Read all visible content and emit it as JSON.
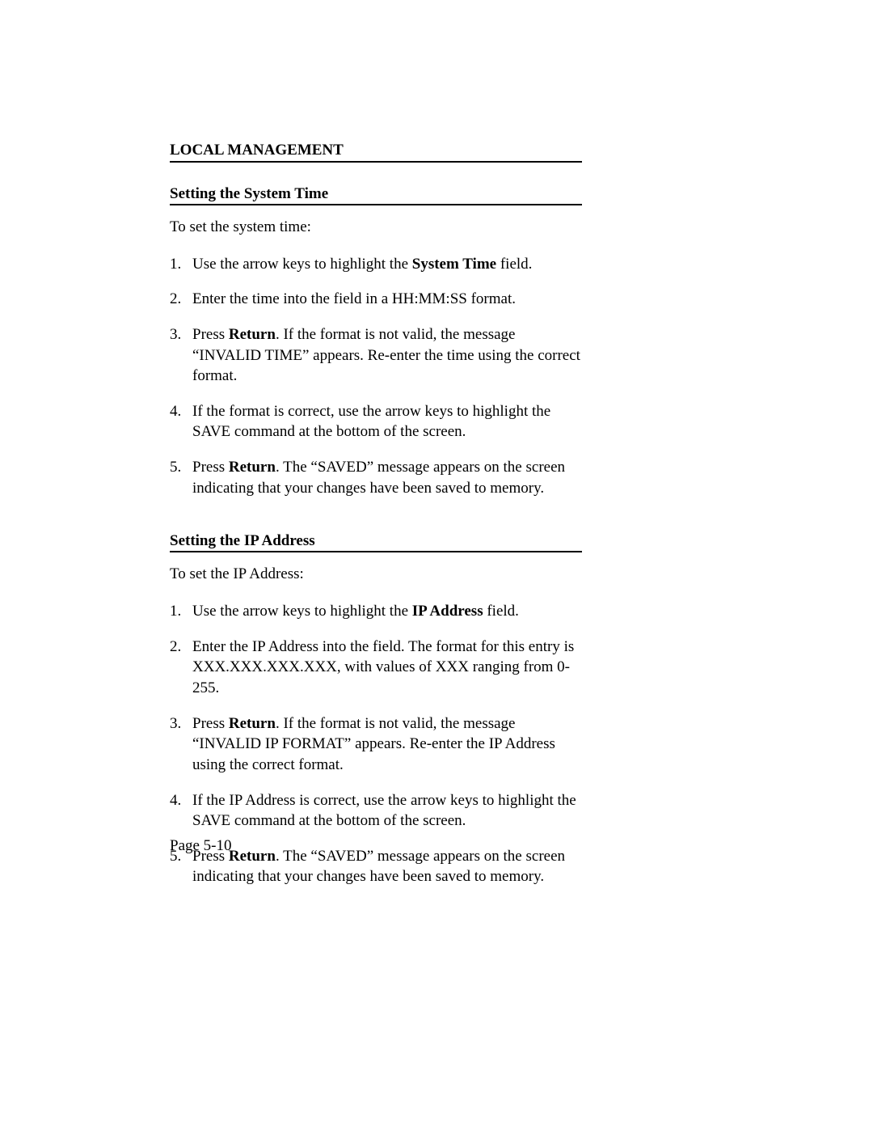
{
  "chapter_title": "LOCAL MANAGEMENT",
  "section1": {
    "title": "Setting the System Time",
    "intro": "To set the system time:",
    "steps": [
      {
        "num": "1.",
        "pre": "Use the arrow keys to highlight the ",
        "bold": "System Time",
        "post": " field."
      },
      {
        "num": "2.",
        "pre": "Enter the time into the field in a HH:MM:SS format.",
        "bold": "",
        "post": ""
      },
      {
        "num": "3.",
        "pre": "Press ",
        "bold": "Return",
        "post": ". If the format is not valid, the message “INVALID TIME” appears. Re-enter the time using the correct format."
      },
      {
        "num": "4.",
        "pre": "If the format is correct, use the arrow keys to highlight the SAVE command at the bottom of the screen.",
        "bold": "",
        "post": ""
      },
      {
        "num": "5.",
        "pre": "Press ",
        "bold": "Return",
        "post": ". The “SAVED” message appears on the screen indicating that your changes have been saved to memory."
      }
    ]
  },
  "section2": {
    "title": "Setting the IP Address",
    "intro": "To set the IP Address:",
    "steps": [
      {
        "num": "1.",
        "pre": "Use the arrow keys to highlight the ",
        "bold": "IP Address",
        "post": " field."
      },
      {
        "num": "2.",
        "pre": "Enter the IP Address into the field. The format for this entry is XXX.XXX.XXX.XXX, with values of XXX ranging from 0-255.",
        "bold": "",
        "post": ""
      },
      {
        "num": "3.",
        "pre": "Press ",
        "bold": "Return",
        "post": ". If the format is not valid, the message “INVALID IP FORMAT” appears. Re-enter the IP Address using the correct format."
      },
      {
        "num": "4.",
        "pre": "If the IP Address is correct, use the arrow keys to highlight the SAVE command at the bottom of the screen.",
        "bold": "",
        "post": ""
      },
      {
        "num": "5.",
        "pre": "Press ",
        "bold": "Return",
        "post": ". The “SAVED” message appears on the screen indicating that your changes have been saved to memory."
      }
    ]
  },
  "page_number": "Page 5-10"
}
